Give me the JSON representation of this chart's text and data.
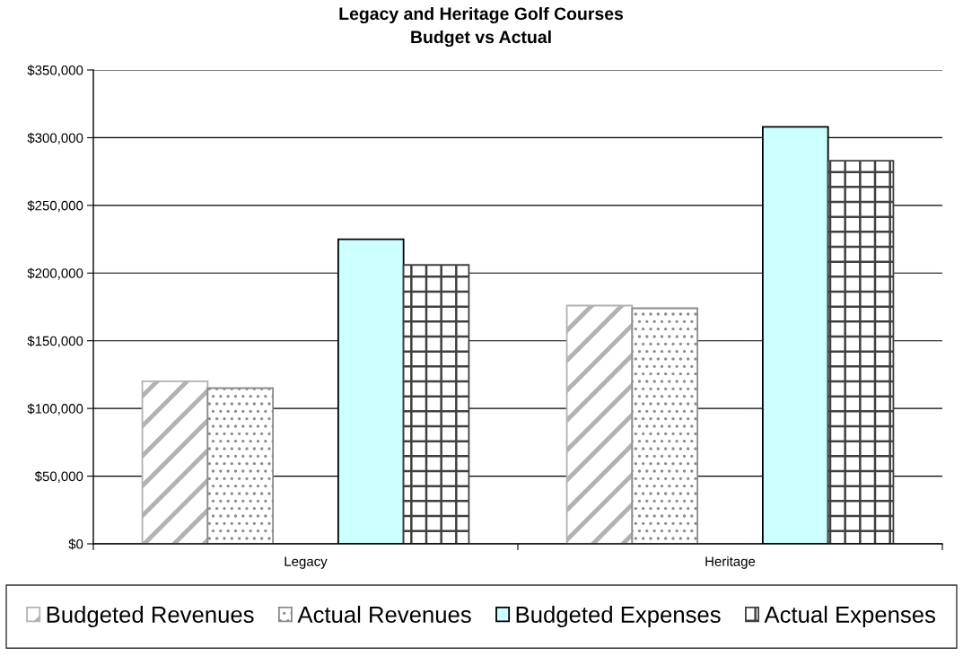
{
  "chart_data": {
    "type": "bar",
    "title": "Legacy and Heritage Golf Courses",
    "subtitle": "Budget vs Actual",
    "categories": [
      "Legacy",
      "Heritage"
    ],
    "series": [
      {
        "name": "Budgeted Revenues",
        "color": "#b2b2b2",
        "values": [
          120000,
          176000
        ]
      },
      {
        "name": "Actual Revenues",
        "color": "#8c8c8c",
        "values": [
          115000,
          174000
        ]
      },
      {
        "name": "Budgeted Expenses",
        "color": "#ccffff",
        "values": [
          225000,
          308000
        ]
      },
      {
        "name": "Actual Expenses",
        "color": "#404040",
        "values": [
          206000,
          283000
        ]
      }
    ],
    "ylim": [
      0,
      350000
    ],
    "yticks": [
      {
        "value": 0,
        "label": "$0"
      },
      {
        "value": 50000,
        "label": "$50,000"
      },
      {
        "value": 100000,
        "label": "$100,000"
      },
      {
        "value": 150000,
        "label": "$150,000"
      },
      {
        "value": 200000,
        "label": "$200,000"
      },
      {
        "value": 250000,
        "label": "$250,000"
      },
      {
        "value": 300000,
        "label": "$300,000"
      },
      {
        "value": 350000,
        "label": "$350,000"
      }
    ],
    "grid": "y",
    "legend": "bottom"
  }
}
